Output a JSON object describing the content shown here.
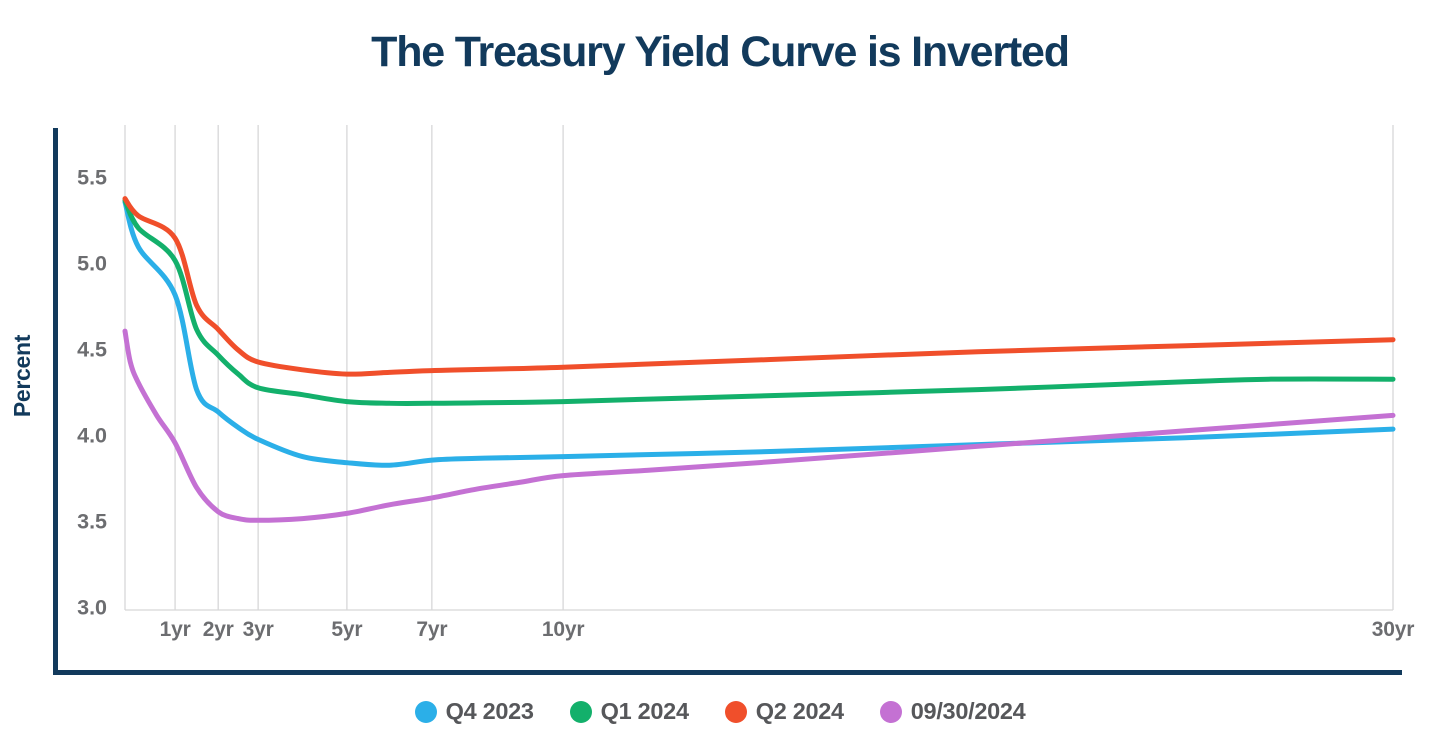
{
  "title": "The Treasury Yield Curve is Inverted",
  "colors": {
    "title": "#123A5C",
    "axis": "#123A5C",
    "grid": "#D7D7D8",
    "tick_text": "#6C6D70",
    "legend_text": "#56575A",
    "background": "#FFFFFF"
  },
  "chart_data": {
    "type": "line",
    "title": "The Treasury Yield Curve is Inverted",
    "xlabel": "",
    "ylabel": "Percent",
    "ylim": [
      3.0,
      5.8
    ],
    "grid": "vertical",
    "legend_position": "bottom",
    "x_unit": "maturity in years",
    "y_unit": "percent",
    "x_ticks": [
      {
        "label": "1yr",
        "years": 1
      },
      {
        "label": "2yr",
        "years": 2
      },
      {
        "label": "3yr",
        "years": 3
      },
      {
        "label": "5yr",
        "years": 5
      },
      {
        "label": "7yr",
        "years": 7
      },
      {
        "label": "10yr",
        "years": 10
      },
      {
        "label": "30yr",
        "years": 30
      }
    ],
    "y_ticks": [
      {
        "label": "5.5",
        "value": 5.5
      },
      {
        "label": "5.0",
        "value": 5.0
      },
      {
        "label": "4.5",
        "value": 4.5
      },
      {
        "label": "4.0",
        "value": 4.0
      },
      {
        "label": "3.5",
        "value": 3.5
      },
      {
        "label": "3.0",
        "value": 3.0
      }
    ],
    "x_scale_anchors": {
      "years": [
        0.25,
        0.5,
        1,
        2,
        3,
        5,
        7,
        10,
        30
      ],
      "fractions": [
        0,
        0.0105,
        0.0395,
        0.0735,
        0.105,
        0.175,
        0.242,
        0.3455,
        1
      ]
    },
    "series": [
      {
        "name": "Q4 2023",
        "color": "#2BAFE8",
        "points": [
          [
            0.25,
            5.36
          ],
          [
            0.5,
            5.1
          ],
          [
            1,
            4.82
          ],
          [
            1.5,
            4.27
          ],
          [
            2,
            4.14
          ],
          [
            2.5,
            4.05
          ],
          [
            3,
            3.98
          ],
          [
            4,
            3.88
          ],
          [
            5,
            3.845
          ],
          [
            6,
            3.83
          ],
          [
            7,
            3.86
          ],
          [
            8,
            3.87
          ],
          [
            10,
            3.88
          ],
          [
            15,
            3.91
          ],
          [
            20,
            3.95
          ],
          [
            25,
            3.99
          ],
          [
            30,
            4.04
          ]
        ]
      },
      {
        "name": "Q1 2024",
        "color": "#13B06B",
        "points": [
          [
            0.25,
            5.37
          ],
          [
            0.5,
            5.21
          ],
          [
            1,
            5.02
          ],
          [
            1.5,
            4.62
          ],
          [
            2,
            4.47
          ],
          [
            2.5,
            4.36
          ],
          [
            3,
            4.28
          ],
          [
            4,
            4.24
          ],
          [
            5,
            4.2
          ],
          [
            6,
            4.19
          ],
          [
            7,
            4.19
          ],
          [
            10,
            4.2
          ],
          [
            15,
            4.235
          ],
          [
            20,
            4.27
          ],
          [
            25,
            4.315
          ],
          [
            27,
            4.33
          ],
          [
            30,
            4.33
          ]
        ]
      },
      {
        "name": "Q2 2024",
        "color": "#F04F2B",
        "points": [
          [
            0.25,
            5.38
          ],
          [
            0.5,
            5.28
          ],
          [
            1,
            5.15
          ],
          [
            1.5,
            4.76
          ],
          [
            2,
            4.62
          ],
          [
            2.5,
            4.5
          ],
          [
            3,
            4.43
          ],
          [
            4,
            4.385
          ],
          [
            5,
            4.36
          ],
          [
            6,
            4.37
          ],
          [
            7,
            4.38
          ],
          [
            10,
            4.4
          ],
          [
            15,
            4.445
          ],
          [
            20,
            4.49
          ],
          [
            25,
            4.525
          ],
          [
            30,
            4.56
          ]
        ]
      },
      {
        "name": "09/30/2024",
        "color": "#C471D3",
        "points": [
          [
            0.25,
            4.61
          ],
          [
            0.35,
            4.43
          ],
          [
            0.5,
            4.31
          ],
          [
            0.75,
            4.12
          ],
          [
            1,
            3.96
          ],
          [
            1.5,
            3.7
          ],
          [
            2,
            3.56
          ],
          [
            2.5,
            3.52
          ],
          [
            3,
            3.51
          ],
          [
            4,
            3.52
          ],
          [
            5,
            3.55
          ],
          [
            6,
            3.6
          ],
          [
            7,
            3.64
          ],
          [
            8,
            3.69
          ],
          [
            9,
            3.73
          ],
          [
            10,
            3.77
          ],
          [
            12,
            3.8
          ],
          [
            15,
            3.85
          ],
          [
            20,
            3.94
          ],
          [
            25,
            4.03
          ],
          [
            30,
            4.12
          ]
        ]
      }
    ]
  }
}
